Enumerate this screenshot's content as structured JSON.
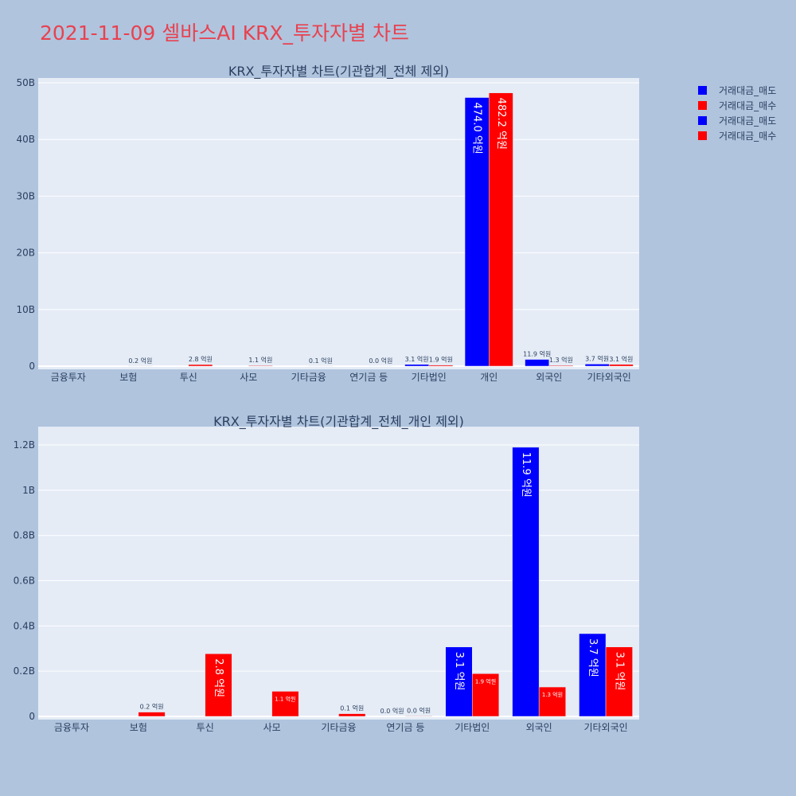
{
  "title": "2021-11-09 셀바스AI KRX_투자자별 차트",
  "legend": [
    {
      "label": "거래대금_매도",
      "color": "#0000ff"
    },
    {
      "label": "거래대금_매수",
      "color": "#ff0000"
    },
    {
      "label": "거래대금_매도",
      "color": "#0000ff"
    },
    {
      "label": "거래대금_매수",
      "color": "#ff0000"
    }
  ],
  "chart_data": [
    {
      "type": "bar",
      "title": "KRX_투자자별 차트(기관합계_전체 제외)",
      "categories": [
        "금융투자",
        "보험",
        "투신",
        "사모",
        "기타금융",
        "연기금 등",
        "기타법인",
        "개인",
        "외국인",
        "기타외국인"
      ],
      "ylim": [
        0,
        50000000000
      ],
      "yticks": [
        0,
        10000000000,
        20000000000,
        30000000000,
        40000000000,
        50000000000
      ],
      "ytick_labels": [
        "0",
        "10B",
        "20B",
        "30B",
        "40B",
        "50B"
      ],
      "grid": true,
      "series": [
        {
          "name": "거래대금_매도",
          "color": "#0000ff",
          "values": [
            0,
            0,
            0,
            0,
            0,
            0,
            310000000,
            47400000000,
            1190000000,
            370000000
          ],
          "labels": [
            "",
            "",
            "",
            "",
            "",
            "",
            "3.1 억원",
            "474.0 억원",
            "11.9 억원",
            "3.7 억원"
          ]
        },
        {
          "name": "거래대금_매수",
          "color": "#ff0000",
          "values": [
            0,
            20000000,
            280000000,
            110000000,
            10000000,
            1000000,
            190000000,
            48220000000,
            130000000,
            310000000
          ],
          "labels": [
            "",
            "0.2 억원",
            "2.8 억원",
            "1.1 억원",
            "0.1 억원",
            "0.0 억원",
            "1.9 억원",
            "482.2 억원",
            "1.3 억원",
            "3.1 억원"
          ]
        }
      ]
    },
    {
      "type": "bar",
      "title": "KRX_투자자별 차트(기관합계_전체_개인 제외)",
      "categories": [
        "금융투자",
        "보험",
        "투신",
        "사모",
        "기타금융",
        "연기금 등",
        "기타법인",
        "외국인",
        "기타외국인"
      ],
      "ylim": [
        0,
        1260000000
      ],
      "yticks": [
        0,
        200000000,
        400000000,
        600000000,
        800000000,
        1000000000,
        1200000000
      ],
      "ytick_labels": [
        "0",
        "0.2B",
        "0.4B",
        "0.6B",
        "0.8B",
        "1B",
        "1.2B"
      ],
      "grid": true,
      "series": [
        {
          "name": "거래대금_매도",
          "color": "#0000ff",
          "values": [
            0,
            0,
            0,
            0,
            0,
            0,
            307000000,
            1190000000,
            366000000
          ],
          "labels": [
            "",
            "",
            "",
            "",
            "",
            "0.0 억원",
            "3.1 억원",
            "11.9 억원",
            "3.7 억원"
          ]
        },
        {
          "name": "거래대금_매수",
          "color": "#ff0000",
          "values": [
            0,
            19000000,
            277000000,
            111000000,
            12000000,
            2000000,
            189000000,
            130000000,
            307000000
          ],
          "labels": [
            "",
            "0.2 억원",
            "2.8 억원",
            "1.1 억원",
            "0.1 억원",
            "0.0 억원",
            "1.9 억원",
            "1.3 억원",
            "3.1 억원"
          ]
        }
      ]
    }
  ]
}
